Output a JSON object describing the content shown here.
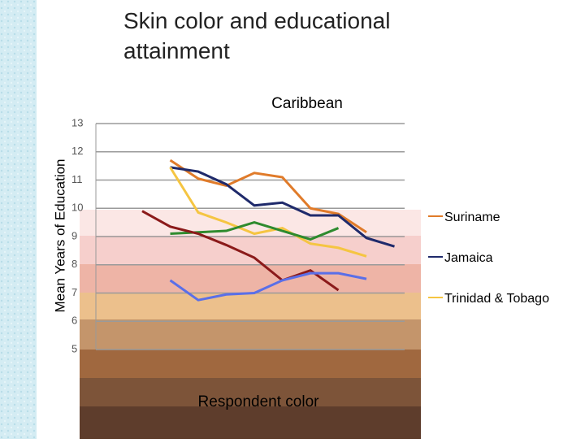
{
  "title": "Skin color and educational attainment",
  "chart_data": {
    "type": "line",
    "title": "Caribbean",
    "y_label": "Mean Years of Education",
    "x_label": "Respondent color",
    "categories": [
      null,
      null,
      null,
      null,
      null,
      null,
      null,
      null,
      null,
      null
    ],
    "ylim": [
      5,
      13
    ],
    "yticks": [
      5,
      6,
      7,
      8,
      9,
      10,
      11,
      12,
      13
    ],
    "grid": true,
    "legend": "right",
    "series": [
      {
        "name": "Suriname",
        "color": "#e07b2a",
        "values": [
          null,
          11.7,
          11.05,
          10.8,
          11.25,
          11.1,
          10.0,
          9.8,
          9.15,
          null
        ]
      },
      {
        "name": "Jamaica",
        "color": "#1f2a6b",
        "values": [
          null,
          11.45,
          11.3,
          10.85,
          10.1,
          10.2,
          9.75,
          9.75,
          8.95,
          8.65
        ]
      },
      {
        "name": "Trinidad & Tobago",
        "color": "#f5c542",
        "values": [
          null,
          11.45,
          9.85,
          9.5,
          9.1,
          9.3,
          8.75,
          8.6,
          8.3,
          null
        ]
      },
      {
        "color": "#2e8b2e",
        "values": [
          null,
          9.1,
          9.15,
          9.2,
          9.5,
          9.2,
          8.9,
          9.3,
          null,
          null
        ]
      },
      {
        "color": "#8b1a1a",
        "values": [
          9.9,
          9.35,
          9.1,
          8.7,
          8.25,
          7.45,
          7.8,
          7.1,
          null,
          null
        ]
      },
      {
        "color": "#5a6fe8",
        "values": [
          null,
          7.45,
          6.75,
          6.95,
          7.0,
          7.45,
          7.7,
          7.7,
          7.5,
          null
        ]
      }
    ]
  }
}
